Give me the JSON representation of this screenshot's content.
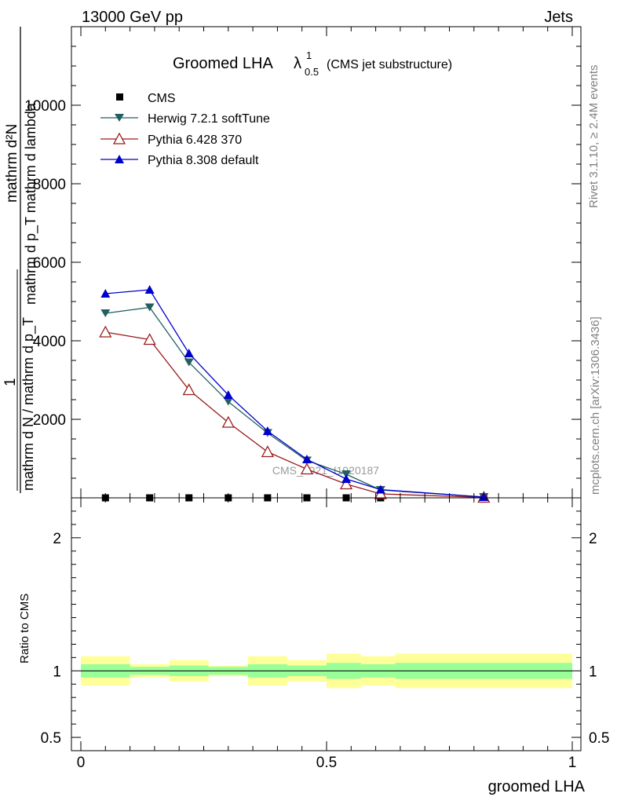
{
  "header": {
    "left": "13000 GeV pp",
    "right": "Jets"
  },
  "side": {
    "rivet": "Rivet 3.1.10, ≥ 2.4M events",
    "mcplots": "mcplots.cern.ch [arXiv:1306.3436]"
  },
  "chart_data": {
    "type": "line",
    "title": "Groomed LHA",
    "title_symbol": "λ",
    "title_sup": "1",
    "title_sub": "0.5",
    "title_note": "(CMS jet substructure)",
    "watermark": "CMS_2021_I1920187",
    "ylabel_main": {
      "numerator": "mathrm d²N",
      "denominator": "mathrm d p_T mathrm d lambda",
      "frac_numerator": "1",
      "frac_denominator": "mathrm d N / mathrm d p_T"
    },
    "xlabel": "groomed LHA",
    "xlim": [
      0,
      1
    ],
    "ylim": [
      0,
      12000
    ],
    "x_ticks": [
      "0",
      "0.5",
      "1"
    ],
    "y_ticks": [
      {
        "value": 2000,
        "label": "2000"
      },
      {
        "value": 4000,
        "label": "4000"
      },
      {
        "value": 6000,
        "label": "6000"
      },
      {
        "value": 8000,
        "label": "8000"
      },
      {
        "value": 10000,
        "label": "10000"
      }
    ],
    "x": [
      0.05,
      0.14,
      0.22,
      0.3,
      0.38,
      0.46,
      0.54,
      0.61,
      0.82
    ],
    "series": [
      {
        "name": "CMS",
        "marker": "square",
        "color": "#000000",
        "values": [
          0,
          0,
          0,
          0,
          0,
          0,
          0,
          0,
          0
        ]
      },
      {
        "name": "Herwig 7.2.1 softTune",
        "marker": "triangle-down",
        "color": "#225f5f",
        "values": [
          4700,
          4850,
          3450,
          2450,
          1650,
          950,
          600,
          200,
          20
        ]
      },
      {
        "name": "Pythia 6.428 370",
        "marker": "triangle-open",
        "color": "#9b1b1b",
        "values": [
          4220,
          4030,
          2750,
          1920,
          1170,
          730,
          350,
          100,
          10
        ]
      },
      {
        "name": "Pythia 8.308 default",
        "marker": "triangle-up",
        "color": "#0000cc",
        "values": [
          5200,
          5300,
          3680,
          2620,
          1700,
          980,
          480,
          210,
          20
        ]
      }
    ],
    "ratio": {
      "ylabel": "Ratio to CMS",
      "ylim": [
        0.4,
        2.3
      ],
      "y_ticks": [
        {
          "value": 0.5,
          "label": "0.5"
        },
        {
          "value": 1,
          "label": "1"
        },
        {
          "value": 2,
          "label": "2"
        }
      ],
      "bins": [
        {
          "lo": 0.0,
          "hi": 0.1,
          "stat": 0.05,
          "total": 0.11
        },
        {
          "lo": 0.1,
          "hi": 0.18,
          "stat": 0.03,
          "total": 0.05
        },
        {
          "lo": 0.18,
          "hi": 0.26,
          "stat": 0.04,
          "total": 0.08
        },
        {
          "lo": 0.26,
          "hi": 0.34,
          "stat": 0.03,
          "total": 0.04
        },
        {
          "lo": 0.34,
          "hi": 0.42,
          "stat": 0.05,
          "total": 0.11
        },
        {
          "lo": 0.42,
          "hi": 0.5,
          "stat": 0.04,
          "total": 0.08
        },
        {
          "lo": 0.5,
          "hi": 0.57,
          "stat": 0.06,
          "total": 0.13
        },
        {
          "lo": 0.57,
          "hi": 0.64,
          "stat": 0.05,
          "total": 0.11
        },
        {
          "lo": 0.64,
          "hi": 1.0,
          "stat": 0.06,
          "total": 0.13
        }
      ]
    }
  }
}
